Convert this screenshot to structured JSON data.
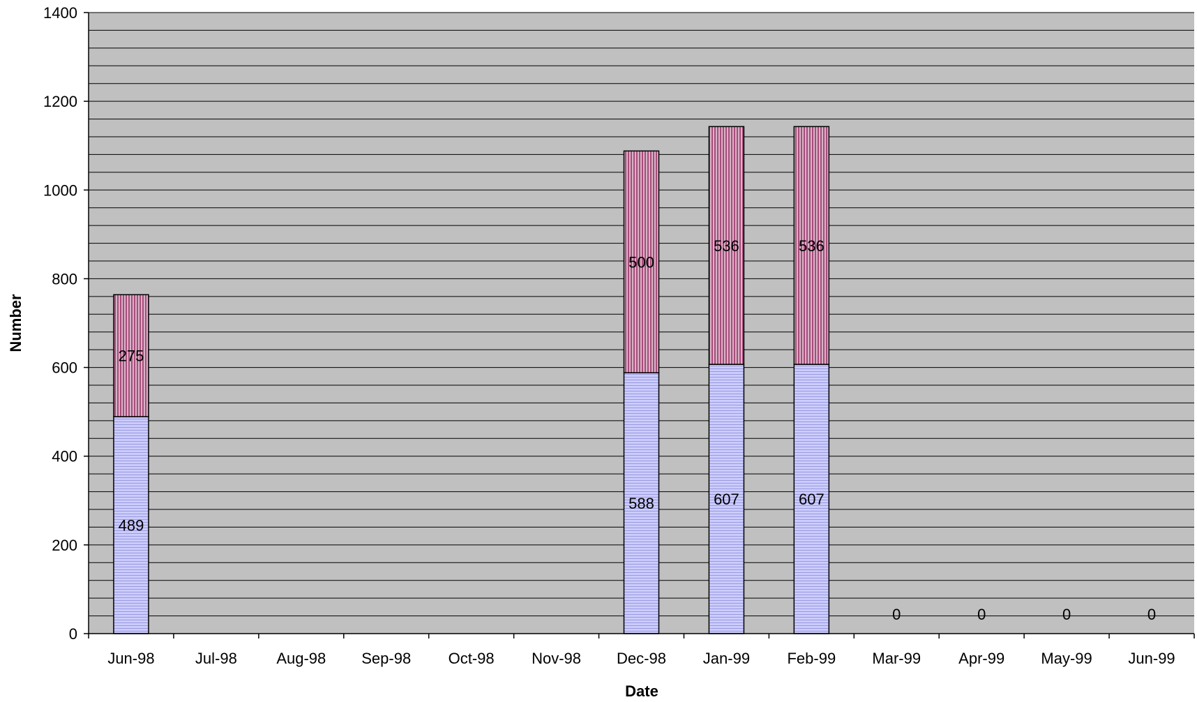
{
  "chart_data": {
    "type": "bar",
    "stacked": true,
    "categories": [
      "Jun-98",
      "Jul-98",
      "Aug-98",
      "Sep-98",
      "Oct-98",
      "Nov-98",
      "Dec-98",
      "Jan-99",
      "Feb-99",
      "Mar-99",
      "Apr-99",
      "May-99",
      "Jun-99"
    ],
    "series": [
      {
        "values": [
          489,
          null,
          null,
          null,
          null,
          null,
          588,
          607,
          607,
          0,
          0,
          0,
          0
        ],
        "color": "#ccccff",
        "pattern": "horizontal-lines"
      },
      {
        "values": [
          275,
          null,
          null,
          null,
          null,
          null,
          500,
          536,
          536,
          null,
          null,
          null,
          null
        ],
        "color": "#993366",
        "pattern": "vertical-lines"
      }
    ],
    "xlabel": "Date",
    "ylabel": "Number",
    "ylim": [
      0,
      1400
    ],
    "yticks": [
      0,
      200,
      400,
      600,
      800,
      1000,
      1200,
      1400
    ],
    "grid": true,
    "plot_background": "#c0c0c0"
  }
}
